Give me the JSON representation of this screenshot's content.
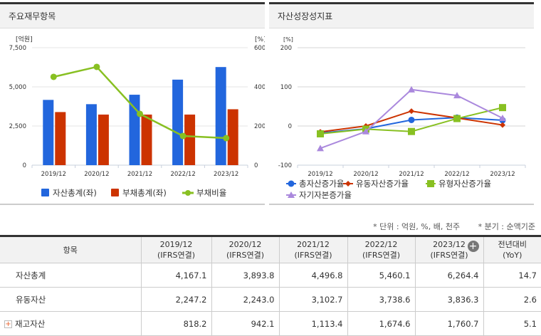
{
  "panels": {
    "left_title": "주요재무항목",
    "right_title": "자산성장성지표"
  },
  "chart_data": [
    {
      "type": "bar",
      "title": "",
      "categories": [
        "2019/12",
        "2020/12",
        "2021/12",
        "2022/12",
        "2023/12"
      ],
      "ylabel": "[억원]",
      "y2label": "[%]",
      "ylim": [
        0,
        7500
      ],
      "y2lim": [
        0,
        600
      ],
      "yticks": [
        "0",
        "2,500",
        "5,000",
        "7,500"
      ],
      "y2ticks": [
        "0",
        "200",
        "400",
        "600"
      ],
      "grid": true,
      "legend": "bottom",
      "series": [
        {
          "name": "자산총계(좌)",
          "type": "bar",
          "axis": "left",
          "color": "#2266dd",
          "values": [
            4167.1,
            3893.8,
            4496.8,
            5460.1,
            6264.4
          ]
        },
        {
          "name": "부채총계(좌)",
          "type": "bar",
          "axis": "left",
          "color": "#cc3300",
          "values": [
            3390,
            3230,
            3230,
            3230,
            3570
          ]
        },
        {
          "name": "부채비율",
          "type": "line",
          "axis": "right",
          "color": "#88c022",
          "values": [
            451,
            502,
            262,
            149,
            138
          ]
        }
      ]
    },
    {
      "type": "line",
      "title": "",
      "categories": [
        "2019/12",
        "2020/12",
        "2021/12",
        "2022/12",
        "2023/12"
      ],
      "ylabel": "[%]",
      "ylim": [
        -100,
        200
      ],
      "yticks": [
        "-100",
        "0",
        "100",
        "200"
      ],
      "grid": true,
      "legend": "bottom",
      "series": [
        {
          "name": "총자산증가율",
          "color": "#2266dd",
          "marker": "circle",
          "values": [
            -18,
            -7,
            15.5,
            21.4,
            14.7
          ]
        },
        {
          "name": "유동자산증가율",
          "color": "#cc3300",
          "marker": "diamond",
          "values": [
            -15,
            0,
            38,
            20.5,
            2.6
          ]
        },
        {
          "name": "유형자산증가율",
          "color": "#88c022",
          "marker": "square",
          "values": [
            -20,
            -8,
            -14,
            19,
            47
          ]
        },
        {
          "name": "자기자본증가율",
          "color": "#aa88dd",
          "marker": "triangle",
          "values": [
            -57,
            -14,
            93,
            78,
            20
          ]
        }
      ]
    }
  ],
  "notes": {
    "unit": "* 단위 : 억원, %, 배, 천주",
    "basis": "* 분기 : 순액기준"
  },
  "table": {
    "header": [
      "항목",
      "2019/12\n(IFRS연결)",
      "2020/12\n(IFRS연결)",
      "2021/12\n(IFRS연결)",
      "2022/12\n(IFRS연결)",
      "2023/12\n(IFRS연결)",
      "전년대비\n(YoY)"
    ],
    "rows": [
      {
        "label": "자산총계",
        "values": [
          "4,167.1",
          "3,893.8",
          "4,496.8",
          "5,460.1",
          "6,264.4",
          "14.7"
        ]
      },
      {
        "label": "유동자산",
        "values": [
          "2,247.2",
          "2,243.0",
          "3,102.7",
          "3,738.6",
          "3,836.3",
          "2.6"
        ]
      },
      {
        "label": "재고자산",
        "expandable": true,
        "values": [
          "818.2",
          "942.1",
          "1,113.4",
          "1,674.6",
          "1,760.7",
          "5.1"
        ]
      }
    ]
  }
}
